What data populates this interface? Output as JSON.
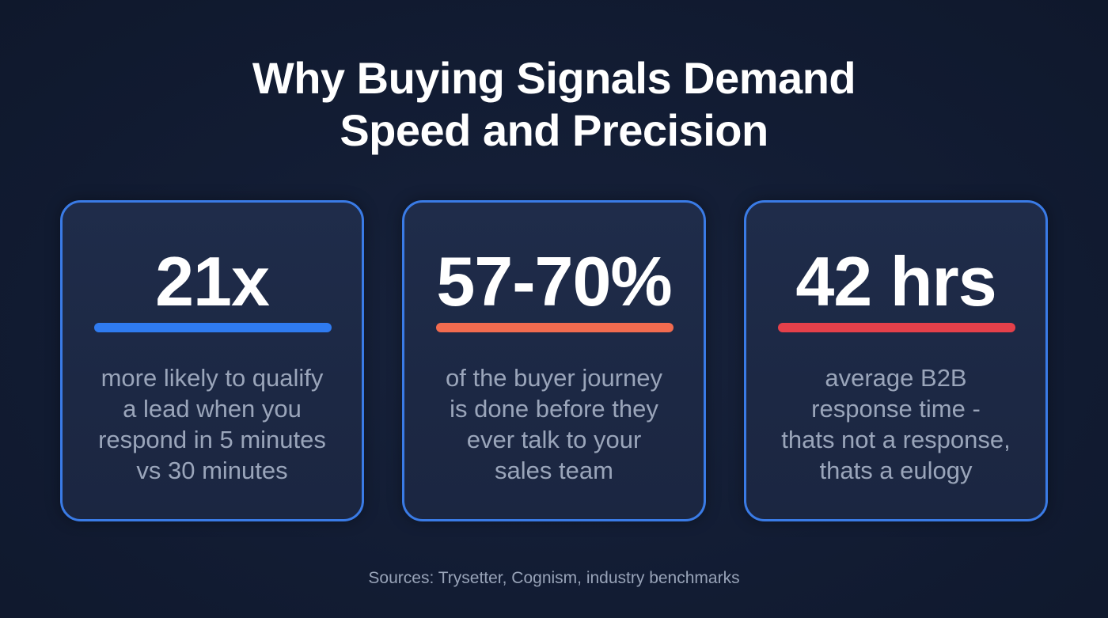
{
  "header": {
    "title_line1": "Why Buying Signals Demand",
    "title_line2": "Speed and Precision"
  },
  "cards": [
    {
      "stat": "21x",
      "accent_color": "#2f7bf0",
      "description": [
        "more likely to qualify",
        "a lead when you",
        "respond in 5 minutes",
        "vs 30 minutes"
      ]
    },
    {
      "stat": "57-70%",
      "accent_color": "#f26b4f",
      "description": [
        "of the buyer journey",
        "is done before they",
        "ever talk to your",
        "sales team"
      ]
    },
    {
      "stat": "42 hrs",
      "accent_color": "#e5404a",
      "description": [
        "average B2B",
        "response time -",
        "thats not a response,",
        "thats a eulogy"
      ]
    }
  ],
  "colors": {
    "background": "#121c33",
    "card_background": "#1e2a46",
    "card_border": "#3a7be6",
    "description_text": "#9aa5ba"
  },
  "footer": {
    "sources": "Sources: Trysetter, Cognism, industry benchmarks"
  }
}
